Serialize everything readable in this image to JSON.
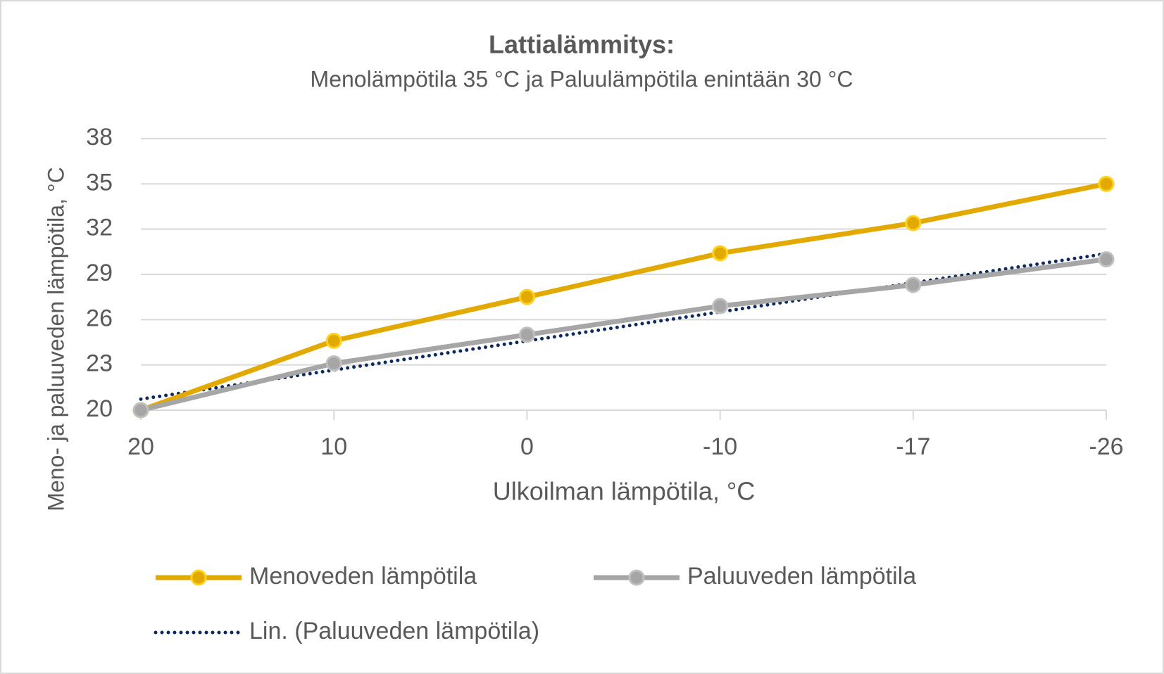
{
  "chart_data": {
    "type": "line",
    "title": "Lattialämmitys:",
    "subtitle": "Menolämpötila 35 °C ja Paluulämpötila enintään 30 °C",
    "x_label": "Ulkoilman lämpötila, °C",
    "y_label": "Meno- ja paluuveden lämpötila, °C",
    "categories": [
      "20",
      "10",
      "0",
      "-10",
      "-17",
      "-26"
    ],
    "series": [
      {
        "name": "Menoveden lämpötila",
        "color": "#E2AA00",
        "marker": "circle",
        "values": [
          20,
          24.6,
          27.5,
          30.4,
          32.4,
          35
        ]
      },
      {
        "name": "Paluuveden lämpötila",
        "color": "#A6A6A6",
        "marker": "circle",
        "values": [
          20,
          23.1,
          25,
          26.9,
          28.3,
          30
        ]
      },
      {
        "name": "Lin. (Paluuveden lämpötila)",
        "color": "#0E2A5C",
        "dash": "dotted",
        "values": [
          20.73,
          22.66,
          24.59,
          26.51,
          28.44,
          30.37
        ]
      }
    ],
    "ylim": [
      20,
      38
    ],
    "yticks": [
      20,
      23,
      26,
      29,
      32,
      35,
      38
    ],
    "grid": true
  }
}
